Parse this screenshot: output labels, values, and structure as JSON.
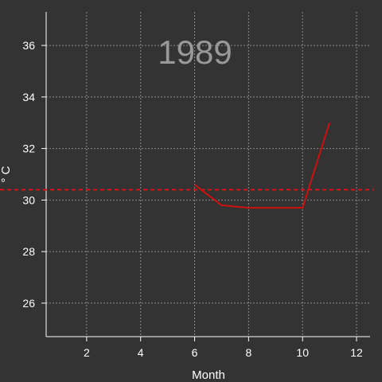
{
  "chart_data": {
    "type": "line",
    "title": "1989",
    "xlabel": "Month",
    "ylabel": "° C",
    "xlim": [
      0.5,
      12.5
    ],
    "ylim": [
      24.7,
      37.3
    ],
    "xticks": [
      2,
      4,
      6,
      8,
      10,
      12
    ],
    "yticks": [
      26,
      28,
      30,
      32,
      34,
      36
    ],
    "grid": true,
    "series": [
      {
        "x": [
          6,
          7,
          8,
          9,
          10,
          11
        ],
        "y": [
          30.6,
          29.8,
          29.7,
          29.7,
          29.7,
          33.0
        ],
        "color": "#cc1111"
      }
    ],
    "reference_line": {
      "y": 30.4,
      "style": "dashed",
      "color": "#dd1111"
    }
  }
}
